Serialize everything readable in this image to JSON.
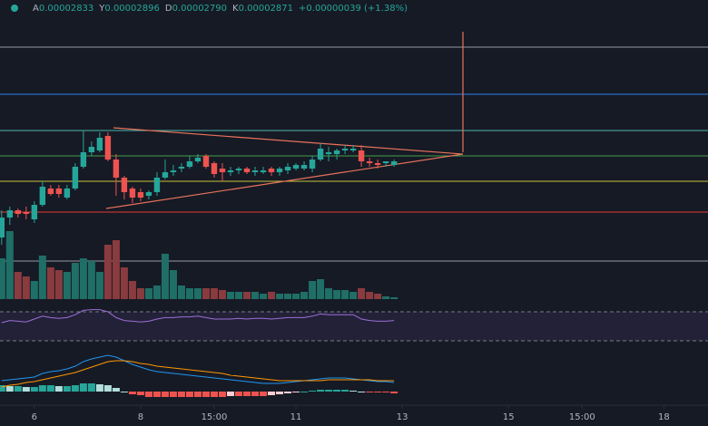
{
  "chart_data": {
    "type": "candlestick",
    "header": [
      {
        "label": "A",
        "value": "0.00002833"
      },
      {
        "label": "Y",
        "value": "0.00002896"
      },
      {
        "label": "D",
        "value": "0.00002790"
      },
      {
        "label": "K",
        "value": "0.00002871"
      },
      {
        "label": "",
        "value": "+0.00000039 (+1.38%)"
      }
    ],
    "xlim": [
      -0.2,
      86.4
    ],
    "xticks": [
      {
        "value": 4,
        "label": "6"
      },
      {
        "value": 17,
        "label": "8"
      },
      {
        "value": 26,
        "label": "15:00"
      },
      {
        "value": 36,
        "label": "11"
      },
      {
        "value": 49,
        "label": "13"
      },
      {
        "value": 62,
        "label": "15"
      },
      {
        "value": 71,
        "label": "15:00"
      },
      {
        "value": 81,
        "label": "18"
      }
    ],
    "ylim": [
      2.81e-05,
      2.935e-05
    ],
    "up_color": "#26a69a",
    "down_color": "#ef5350",
    "volume_up_color": "#1f6f67",
    "volume_down_color": "#8a3b3f",
    "open": [
      2.829e-05,
      2.84e-05,
      2.844e-05,
      2.843e-05,
      2.839e-05,
      2.847e-05,
      2.856e-05,
      2.856e-05,
      2.851e-05,
      2.856e-05,
      2.868e-05,
      2.876e-05,
      2.877e-05,
      2.885e-05,
      2.872e-05,
      2.862e-05,
      2.856e-05,
      2.854e-05,
      2.852e-05,
      2.854e-05,
      2.862e-05,
      2.865e-05,
      2.867e-05,
      2.868e-05,
      2.871e-05,
      2.874e-05,
      2.87e-05,
      2.867e-05,
      2.865e-05,
      2.866e-05,
      2.867e-05,
      2.865e-05,
      2.865e-05,
      2.867e-05,
      2.865e-05,
      2.866e-05,
      2.867e-05,
      2.867e-05,
      2.867e-05,
      2.872e-05,
      2.875e-05,
      2.875e-05,
      2.877e-05,
      2.877e-05,
      2.877e-05,
      2.871e-05,
      2.87e-05,
      2.87e-05,
      2.869e-05
    ],
    "high": [
      2.844e-05,
      2.846e-05,
      2.845e-05,
      2.846e-05,
      2.849e-05,
      2.86e-05,
      2.858e-05,
      2.858e-05,
      2.858e-05,
      2.87e-05,
      2.888e-05,
      2.882e-05,
      2.887e-05,
      2.887e-05,
      2.875e-05,
      2.863e-05,
      2.857e-05,
      2.856e-05,
      2.855e-05,
      2.865e-05,
      2.872e-05,
      2.869e-05,
      2.87e-05,
      2.874e-05,
      2.875e-05,
      2.875e-05,
      2.871e-05,
      2.87e-05,
      2.868e-05,
      2.868e-05,
      2.868e-05,
      2.868e-05,
      2.868e-05,
      2.868e-05,
      2.868e-05,
      2.87e-05,
      2.87e-05,
      2.871e-05,
      2.874e-05,
      2.881e-05,
      2.879e-05,
      2.878e-05,
      2.88e-05,
      2.88e-05,
      2.88e-05,
      2.873e-05,
      2.872e-05,
      2.871e-05,
      2.872e-05
    ],
    "low": [
      2.825e-05,
      2.836e-05,
      2.84e-05,
      2.839e-05,
      2.837e-05,
      2.846e-05,
      2.852e-05,
      2.851e-05,
      2.85e-05,
      2.855e-05,
      2.867e-05,
      2.874e-05,
      2.876e-05,
      2.871e-05,
      2.852e-05,
      2.85e-05,
      2.848e-05,
      2.849e-05,
      2.85e-05,
      2.852e-05,
      2.861e-05,
      2.863e-05,
      2.865e-05,
      2.867e-05,
      2.87e-05,
      2.867e-05,
      2.862e-05,
      2.86e-05,
      2.863e-05,
      2.864e-05,
      2.864e-05,
      2.863e-05,
      2.864e-05,
      2.863e-05,
      2.863e-05,
      2.864e-05,
      2.866e-05,
      2.866e-05,
      2.865e-05,
      2.871e-05,
      2.871e-05,
      2.872e-05,
      2.875e-05,
      2.876e-05,
      2.868e-05,
      2.868e-05,
      2.867e-05,
      2.868e-05,
      2.868e-05
    ],
    "close": [
      2.84e-05,
      2.844e-05,
      2.842e-05,
      2.842e-05,
      2.847e-05,
      2.857e-05,
      2.853e-05,
      2.853e-05,
      2.856e-05,
      2.868e-05,
      2.876e-05,
      2.879e-05,
      2.884e-05,
      2.872e-05,
      2.862e-05,
      2.854e-05,
      2.851e-05,
      2.851e-05,
      2.854e-05,
      2.862e-05,
      2.865e-05,
      2.866e-05,
      2.868e-05,
      2.871e-05,
      2.873e-05,
      2.868e-05,
      2.864e-05,
      2.865e-05,
      2.866e-05,
      2.867e-05,
      2.865e-05,
      2.866e-05,
      2.866e-05,
      2.865e-05,
      2.867e-05,
      2.868e-05,
      2.869e-05,
      2.869e-05,
      2.872e-05,
      2.878e-05,
      2.876e-05,
      2.877e-05,
      2.878e-05,
      2.878e-05,
      2.871e-05,
      2.87e-05,
      2.869e-05,
      2.871e-05,
      2.871e-05
    ],
    "levels": [
      {
        "value": 2.934e-05,
        "color": "#9598a1"
      },
      {
        "value": 2.908e-05,
        "color": "#2f80ed"
      },
      {
        "value": 2.888e-05,
        "color": "#4db6ac"
      },
      {
        "value": 2.874e-05,
        "color": "#43a047"
      },
      {
        "value": 2.86e-05,
        "color": "#c6c23a"
      },
      {
        "value": 2.843e-05,
        "color": "#e53935"
      },
      {
        "value": 2.816e-05,
        "color": "#9598a1"
      }
    ],
    "volume_lim": [
      0,
      80
    ],
    "volume": [
      45,
      75,
      30,
      25,
      20,
      48,
      35,
      32,
      30,
      40,
      45,
      42,
      30,
      60,
      65,
      35,
      20,
      12,
      12,
      15,
      50,
      32,
      15,
      12,
      12,
      12,
      12,
      10,
      8,
      8,
      8,
      8,
      6,
      8,
      6,
      6,
      6,
      8,
      20,
      22,
      12,
      10,
      10,
      8,
      12,
      8,
      6,
      3,
      2
    ],
    "rsi_lim": [
      0,
      100
    ],
    "rsi_levels": [
      30,
      70
    ],
    "rsi_color": "#9c6fd6",
    "rsi": [
      55,
      58,
      57,
      56,
      60,
      64,
      62,
      61,
      62,
      66,
      72,
      73,
      73,
      70,
      62,
      58,
      57,
      56,
      57,
      60,
      62,
      62,
      63,
      63,
      64,
      62,
      60,
      60,
      60,
      61,
      60,
      61,
      61,
      60,
      61,
      62,
      62,
      62,
      64,
      67,
      66,
      66,
      66,
      66,
      60,
      58,
      57,
      57,
      58
    ],
    "macd_lim": [
      -8,
      42
    ],
    "macd_color": "#2196f3",
    "signal_color": "#ff9800",
    "hist_colors": [
      "#26a69a",
      "#b2dfdb",
      "#ef5350",
      "#ffcdd2"
    ],
    "macd": [
      12,
      13,
      14,
      15,
      16,
      20,
      22,
      23,
      25,
      28,
      33,
      36,
      38,
      40,
      38,
      34,
      30,
      27,
      24,
      22,
      21,
      20,
      19,
      18,
      17,
      16,
      15,
      14,
      13,
      12,
      11,
      10,
      9,
      9,
      9,
      10,
      11,
      12,
      13,
      14,
      15,
      15,
      15,
      14,
      13,
      12,
      11,
      11,
      10
    ],
    "signal": [
      5,
      7,
      8,
      10,
      11,
      13,
      15,
      17,
      19,
      21,
      24,
      27,
      30,
      33,
      34,
      34,
      33,
      31,
      30,
      28,
      27,
      26,
      25,
      24,
      23,
      22,
      21,
      20,
      18,
      17,
      16,
      15,
      14,
      13,
      12,
      12,
      12,
      12,
      12,
      12,
      13,
      13,
      13,
      13,
      13,
      13,
      12,
      12,
      12
    ],
    "hist": [
      7,
      6,
      6,
      5,
      5,
      7,
      7,
      6,
      6,
      7,
      9,
      9,
      8,
      7,
      4,
      0,
      -3,
      -4,
      -6,
      -6,
      -6,
      -6,
      -6,
      -6,
      -6,
      -6,
      -6,
      -6,
      -5,
      -5,
      -5,
      -5,
      -5,
      -4,
      -3,
      -2,
      -1,
      0,
      1,
      2,
      2,
      2,
      2,
      1,
      0,
      -1,
      -1,
      -1,
      -2
    ]
  }
}
